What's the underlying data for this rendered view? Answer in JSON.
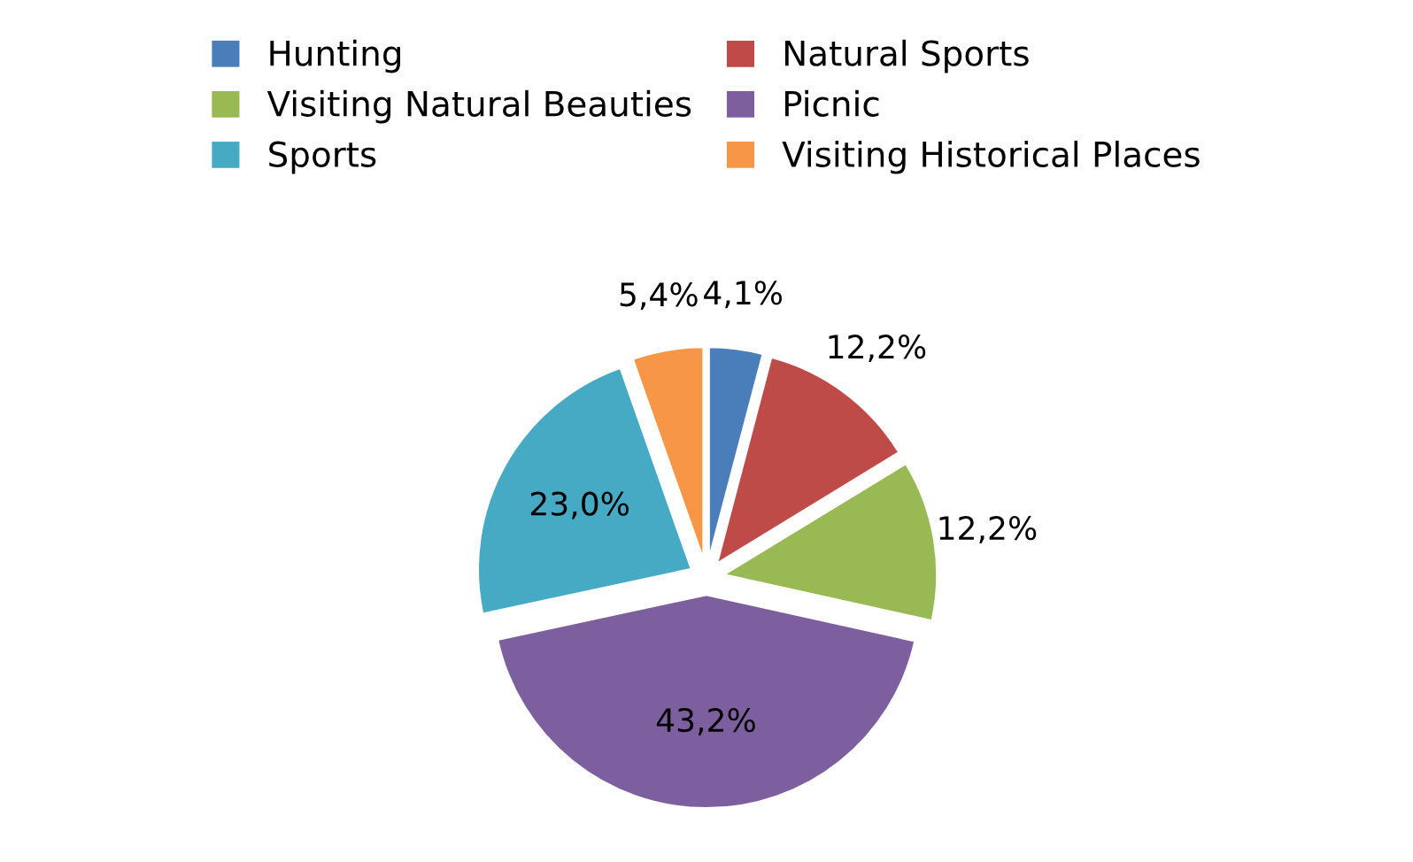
{
  "chart_data": {
    "type": "pie",
    "categories": [
      "Hunting",
      "Natural Sports",
      "Visiting Natural Beauties",
      "Picnic",
      "Sports",
      "Visiting Historical Places"
    ],
    "values": [
      4.1,
      12.2,
      12.2,
      43.2,
      23.0,
      5.4
    ],
    "value_labels": [
      "4,1%",
      "12,2%",
      "12,2%",
      "43,2%",
      "23,0%",
      "5,4%"
    ],
    "colors": [
      "#4a7ebb",
      "#be4b48",
      "#98b954",
      "#7d5fa0",
      "#46aac5",
      "#f79646"
    ],
    "legend": "top"
  }
}
